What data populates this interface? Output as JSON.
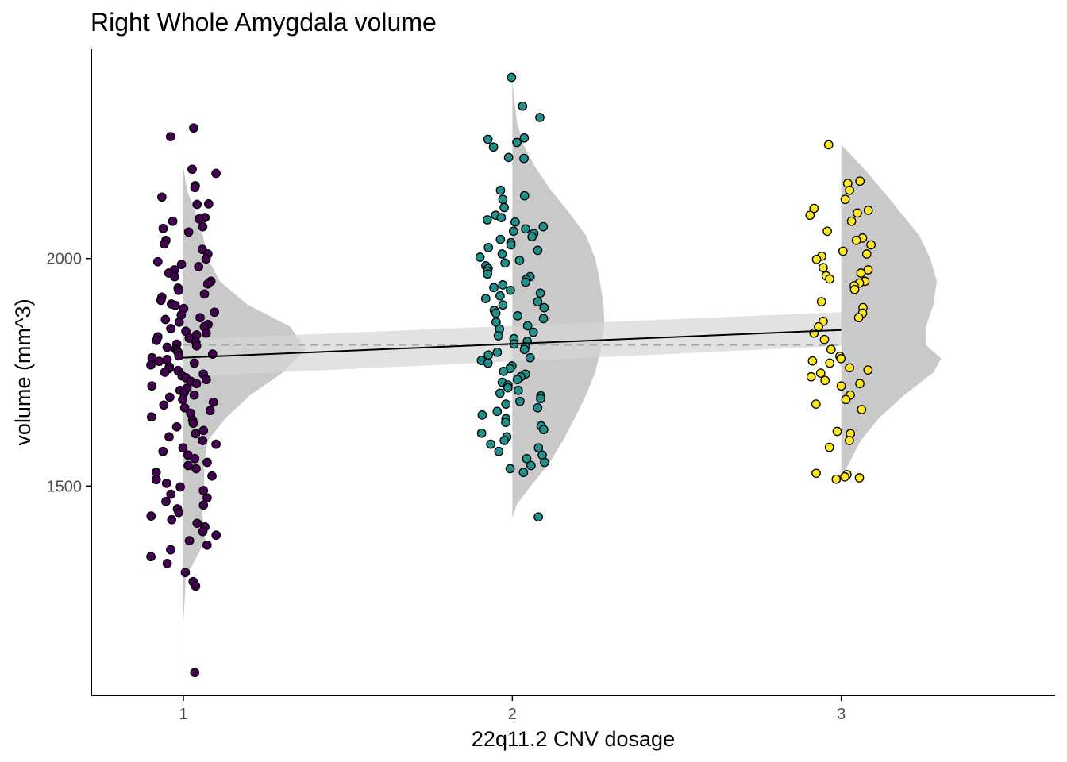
{
  "chart_data": {
    "type": "scatter",
    "subtype": "raincloud (half-violin + jittered points + linear fit)",
    "title": "Right Whole Amygdala volume",
    "xlabel": "22q11.2 CNV dosage",
    "ylabel": "volume (mm^3)",
    "categories": [
      "1",
      "2",
      "3"
    ],
    "x_ticks": [
      "1",
      "2",
      "3"
    ],
    "y_ticks": [
      1500,
      2000
    ],
    "xlim": [
      0.72,
      3.65
    ],
    "ylim": [
      1040,
      2460
    ],
    "grid": false,
    "legend": "none",
    "colors": {
      "group_1": "#440154",
      "group_2": "#21908C",
      "group_3": "#FDE725",
      "violin": "#c9c9c9",
      "ribbon": "#d6d6d6",
      "fit_line": "#000000",
      "mean_line": "#aaaaaa",
      "point_outline": "#000000"
    },
    "fit": {
      "type": "linear",
      "x": [
        1,
        3
      ],
      "y": [
        1782,
        1843
      ],
      "ci_lower": [
        1740,
        1808
      ],
      "ci_upper": [
        1822,
        1882
      ]
    },
    "reference_mean": 1810,
    "series": [
      {
        "name": "1",
        "x_center": 1,
        "violin": {
          "max_width": 0.37,
          "profile": [
            [
              1100,
              0.0
            ],
            [
              1200,
              0.0
            ],
            [
              1300,
              0.02
            ],
            [
              1380,
              0.18
            ],
            [
              1450,
              0.15
            ],
            [
              1500,
              0.17
            ],
            [
              1550,
              0.17
            ],
            [
              1600,
              0.2
            ],
            [
              1650,
              0.35
            ],
            [
              1700,
              0.55
            ],
            [
              1750,
              0.82
            ],
            [
              1800,
              1.0
            ],
            [
              1850,
              0.88
            ],
            [
              1900,
              0.52
            ],
            [
              1950,
              0.3
            ],
            [
              2000,
              0.2
            ],
            [
              2050,
              0.16
            ],
            [
              2100,
              0.1
            ],
            [
              2150,
              0.03
            ],
            [
              2200,
              0.0
            ],
            [
              2287,
              0.0
            ]
          ]
        },
        "values": [
          2287,
          2268,
          2196,
          2187,
          2160,
          2156,
          2135,
          2120,
          2119,
          2090,
          2087,
          2082,
          2070,
          2066,
          2058,
          2040,
          2032,
          2020,
          2010,
          1999,
          1993,
          1987,
          1982,
          1975,
          1968,
          1960,
          1950,
          1944,
          1935,
          1930,
          1922,
          1915,
          1908,
          1900,
          1897,
          1890,
          1882,
          1876,
          1870,
          1866,
          1860,
          1855,
          1850,
          1846,
          1840,
          1836,
          1832,
          1828,
          1825,
          1820,
          1816,
          1812,
          1808,
          1805,
          1801,
          1798,
          1794,
          1790,
          1786,
          1782,
          1778,
          1774,
          1770,
          1766,
          1762,
          1758,
          1754,
          1750,
          1746,
          1742,
          1738,
          1734,
          1730,
          1725,
          1720,
          1715,
          1710,
          1705,
          1700,
          1695,
          1690,
          1684,
          1678,
          1672,
          1666,
          1660,
          1652,
          1645,
          1638,
          1630,
          1622,
          1615,
          1608,
          1600,
          1592,
          1584,
          1576,
          1568,
          1560,
          1552,
          1545,
          1538,
          1530,
          1522,
          1514,
          1506,
          1498,
          1490,
          1482,
          1474,
          1466,
          1458,
          1450,
          1442,
          1434,
          1426,
          1418,
          1410,
          1400,
          1392,
          1380,
          1370,
          1360,
          1345,
          1330,
          1310,
          1290,
          1280,
          1090
        ]
      },
      {
        "name": "2",
        "x_center": 2,
        "violin": {
          "max_width": 0.28,
          "profile": [
            [
              1430,
              0.0
            ],
            [
              1460,
              0.05
            ],
            [
              1500,
              0.2
            ],
            [
              1550,
              0.4
            ],
            [
              1600,
              0.55
            ],
            [
              1650,
              0.68
            ],
            [
              1700,
              0.8
            ],
            [
              1750,
              0.9
            ],
            [
              1800,
              0.96
            ],
            [
              1850,
              1.0
            ],
            [
              1900,
              0.99
            ],
            [
              1950,
              0.95
            ],
            [
              2000,
              0.9
            ],
            [
              2050,
              0.8
            ],
            [
              2100,
              0.62
            ],
            [
              2150,
              0.42
            ],
            [
              2200,
              0.25
            ],
            [
              2250,
              0.12
            ],
            [
              2300,
              0.05
            ],
            [
              2350,
              0.02
            ],
            [
              2398,
              0.0
            ]
          ]
        },
        "values": [
          2398,
          2335,
          2310,
          2265,
          2262,
          2255,
          2245,
          2220,
          2222,
          2150,
          2138,
          2130,
          2112,
          2095,
          2090,
          2085,
          2080,
          2070,
          2065,
          2060,
          2055,
          2048,
          2042,
          2035,
          2030,
          2024,
          2018,
          2010,
          2003,
          1996,
          1990,
          1984,
          1978,
          1972,
          1966,
          1960,
          1954,
          1948,
          1942,
          1936,
          1930,
          1924,
          1918,
          1912,
          1905,
          1898,
          1892,
          1886,
          1880,
          1874,
          1868,
          1860,
          1852,
          1845,
          1838,
          1830,
          1824,
          1818,
          1812,
          1806,
          1800,
          1794,
          1788,
          1782,
          1776,
          1770,
          1764,
          1758,
          1752,
          1746,
          1740,
          1734,
          1728,
          1722,
          1716,
          1710,
          1704,
          1698,
          1692,
          1686,
          1680,
          1672,
          1664,
          1656,
          1648,
          1640,
          1632,
          1624,
          1616,
          1608,
          1600,
          1592,
          1584,
          1576,
          1568,
          1560,
          1552,
          1545,
          1538,
          1530,
          1432
        ]
      },
      {
        "name": "3",
        "x_center": 3,
        "violin": {
          "max_width": 0.33,
          "profile": [
            [
              1515,
              0.0
            ],
            [
              1540,
              0.05
            ],
            [
              1600,
              0.18
            ],
            [
              1650,
              0.35
            ],
            [
              1700,
              0.58
            ],
            [
              1750,
              0.85
            ],
            [
              1780,
              0.92
            ],
            [
              1810,
              0.78
            ],
            [
              1850,
              0.78
            ],
            [
              1900,
              0.85
            ],
            [
              1950,
              0.88
            ],
            [
              2000,
              0.82
            ],
            [
              2050,
              0.72
            ],
            [
              2100,
              0.55
            ],
            [
              2150,
              0.38
            ],
            [
              2200,
              0.2
            ],
            [
              2250,
              0.0
            ]
          ]
        },
        "values": [
          2250,
          2170,
          2165,
          2150,
          2130,
          2110,
          2106,
          2100,
          2095,
          2082,
          2060,
          2045,
          2040,
          2030,
          2016,
          2010,
          2005,
          1998,
          1980,
          1975,
          1968,
          1962,
          1955,
          1950,
          1946,
          1940,
          1932,
          1905,
          1892,
          1880,
          1870,
          1862,
          1850,
          1836,
          1822,
          1800,
          1785,
          1780,
          1775,
          1770,
          1760,
          1755,
          1748,
          1740,
          1732,
          1725,
          1720,
          1700,
          1690,
          1680,
          1668,
          1620,
          1615,
          1600,
          1585,
          1528,
          1525,
          1520,
          1518,
          1515
        ]
      }
    ]
  }
}
